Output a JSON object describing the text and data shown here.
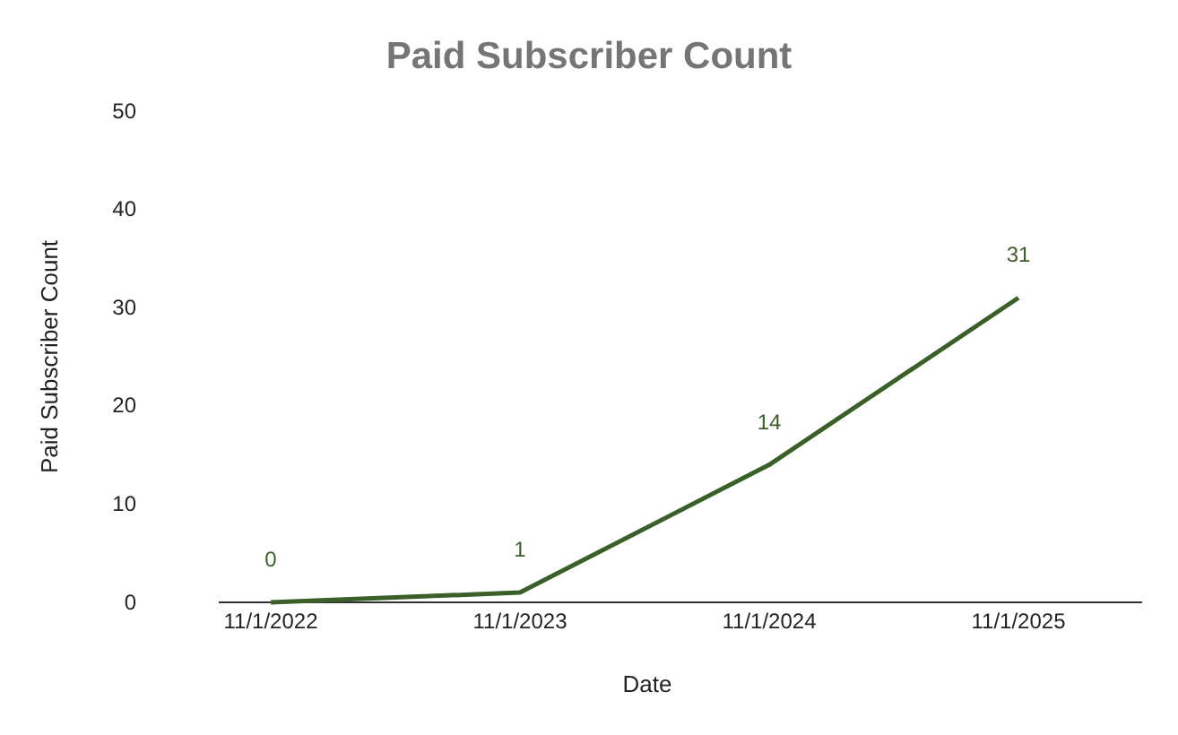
{
  "chart_data": {
    "type": "line",
    "title": "Paid Subscriber Count",
    "xlabel": "Date",
    "ylabel": "Paid Subscriber Count",
    "categories": [
      "11/1/2022",
      "11/1/2023",
      "11/1/2024",
      "11/1/2025"
    ],
    "series": [
      {
        "color": "#3a5f28",
        "values": [
          0,
          1,
          14,
          31
        ]
      }
    ],
    "ylim": [
      0,
      50
    ],
    "yticks": [
      0,
      10,
      20,
      30,
      40,
      50
    ],
    "data_labels": true,
    "marker": "none",
    "line_style": "solid"
  }
}
